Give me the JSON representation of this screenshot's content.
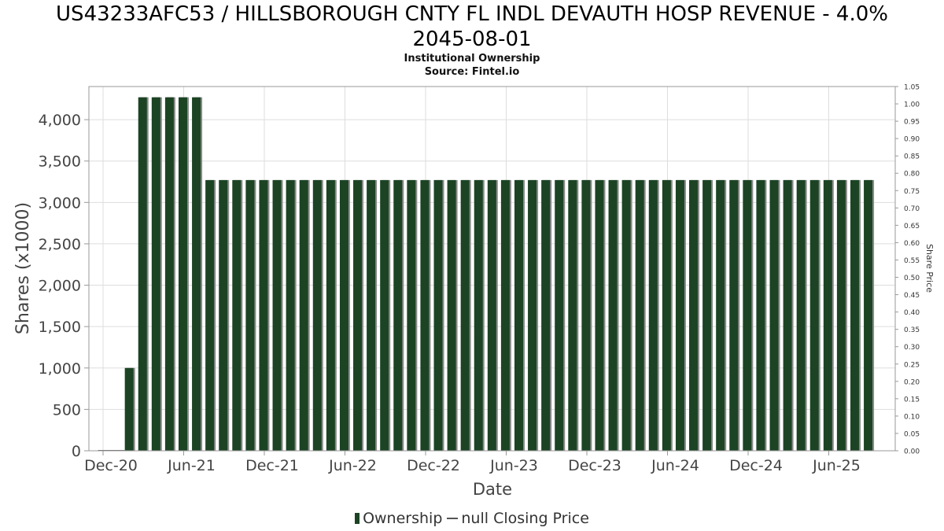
{
  "title_line1": "US43233AFC53 / HILLSBOROUGH CNTY FL INDL DEVAUTH HOSP REVENUE - 4.0%",
  "title_line2": "2045-08-01",
  "subtitle": "Institutional Ownership",
  "source": "Source: Fintel.io",
  "legend": {
    "ownership": "Ownership",
    "price": "null Closing Price"
  },
  "colors": {
    "bar": "#1c4424",
    "bar_shadow": "#8a8a8a",
    "grid": "#dddddd"
  },
  "chart_data": {
    "type": "bar",
    "xlabel": "Date",
    "ylabel": "Shares (x1000)",
    "y2label": "Share Price",
    "ylim": [
      0,
      4400
    ],
    "y2lim": [
      0,
      1.05
    ],
    "grid": true,
    "legend_position": "bottom-center",
    "x_tick_labels": [
      "Dec-20",
      "Jun-21",
      "Dec-21",
      "Jun-22",
      "Dec-22",
      "Jun-23",
      "Dec-23",
      "Jun-24",
      "Dec-24",
      "Jun-25"
    ],
    "y_tick_labels": [
      "0",
      "500",
      "1,000",
      "1,500",
      "2,000",
      "2,500",
      "3,000",
      "3,500",
      "4,000"
    ],
    "y2_tick_labels": [
      "0.00",
      "0.05",
      "0.10",
      "0.15",
      "0.20",
      "0.25",
      "0.30",
      "0.35",
      "0.40",
      "0.45",
      "0.50",
      "0.55",
      "0.60",
      "0.65",
      "0.70",
      "0.75",
      "0.80",
      "0.85",
      "0.90",
      "0.95",
      "1.00",
      "1.05"
    ],
    "series": [
      {
        "name": "Ownership",
        "values": [
          0,
          0,
          1000,
          4270,
          4270,
          4270,
          4270,
          4270,
          3270,
          3270,
          3270,
          3270,
          3270,
          3270,
          3270,
          3270,
          3270,
          3270,
          3270,
          3270,
          3270,
          3270,
          3270,
          3270,
          3270,
          3270,
          3270,
          3270,
          3270,
          3270,
          3270,
          3270,
          3270,
          3270,
          3270,
          3270,
          3270,
          3270,
          3270,
          3270,
          3270,
          3270,
          3270,
          3270,
          3270,
          3270,
          3270,
          3270,
          3270,
          3270,
          3270,
          3270,
          3270,
          3270,
          3270,
          3270,
          3270,
          3270
        ]
      }
    ]
  }
}
